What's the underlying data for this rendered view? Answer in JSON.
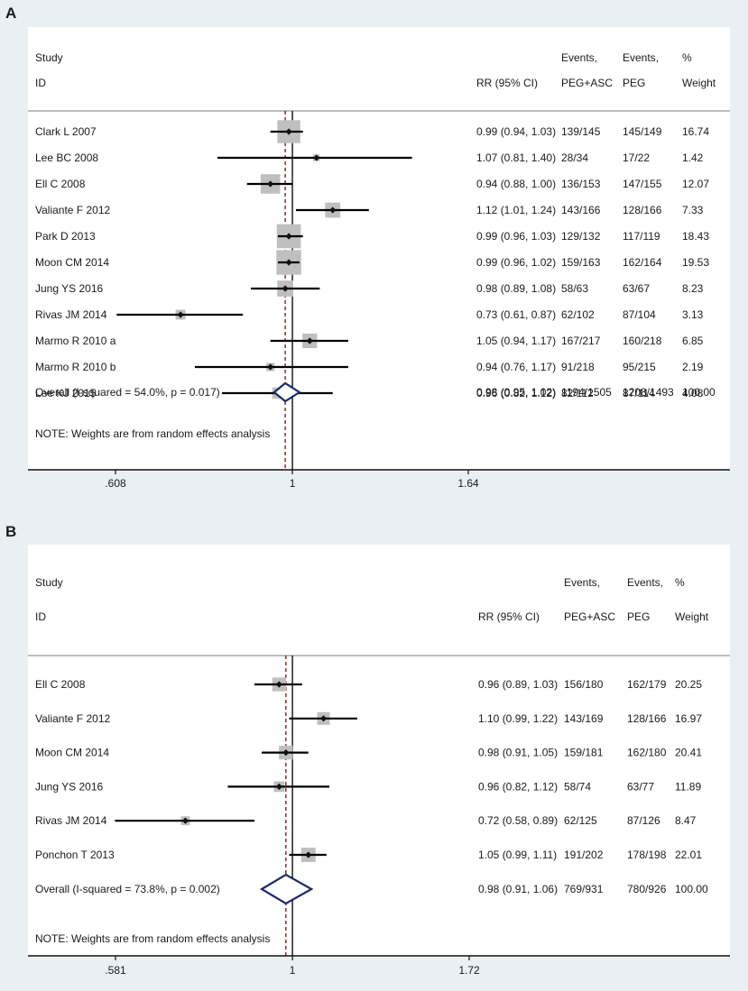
{
  "panels": [
    {
      "letter": "A",
      "headers": {
        "study": "Study",
        "id": "ID",
        "rr": "RR (95% CI)",
        "events_a_1": "Events,",
        "events_a_2": "PEG+ASC",
        "events_b_1": "Events,",
        "events_b_2": "PEG",
        "weight_1": "%",
        "weight_2": "Weight"
      },
      "rows": [
        {
          "study": "Clark L 2007",
          "rr": 0.99,
          "lo": 0.94,
          "hi": 1.03,
          "ci_text": "0.99 (0.94, 1.03)",
          "ev_a": "139/145",
          "ev_b": "145/149",
          "weight": "16.74"
        },
        {
          "study": "Lee BC 2008",
          "rr": 1.07,
          "lo": 0.81,
          "hi": 1.4,
          "ci_text": "1.07 (0.81, 1.40)",
          "ev_a": "28/34",
          "ev_b": "17/22",
          "weight": "1.42"
        },
        {
          "study": "Ell C 2008",
          "rr": 0.94,
          "lo": 0.88,
          "hi": 1.0,
          "ci_text": "0.94 (0.88, 1.00)",
          "ev_a": "136/153",
          "ev_b": "147/155",
          "weight": "12.07"
        },
        {
          "study": "Valiante F 2012",
          "rr": 1.12,
          "lo": 1.01,
          "hi": 1.24,
          "ci_text": "1.12 (1.01, 1.24)",
          "ev_a": "143/166",
          "ev_b": "128/166",
          "weight": "7.33"
        },
        {
          "study": "Park D 2013",
          "rr": 0.99,
          "lo": 0.96,
          "hi": 1.03,
          "ci_text": "0.99 (0.96, 1.03)",
          "ev_a": "129/132",
          "ev_b": "117/119",
          "weight": "18.43"
        },
        {
          "study": "Moon CM 2014",
          "rr": 0.99,
          "lo": 0.96,
          "hi": 1.02,
          "ci_text": "0.99 (0.96, 1.02)",
          "ev_a": "159/163",
          "ev_b": "162/164",
          "weight": "19.53"
        },
        {
          "study": "Jung YS 2016",
          "rr": 0.98,
          "lo": 0.89,
          "hi": 1.08,
          "ci_text": "0.98 (0.89, 1.08)",
          "ev_a": "58/63",
          "ev_b": "63/67",
          "weight": "8.23"
        },
        {
          "study": "Rivas JM 2014",
          "rr": 0.73,
          "lo": 0.61,
          "hi": 0.87,
          "ci_text": "0.73 (0.61, 0.87)",
          "ev_a": "62/102",
          "ev_b": "87/104",
          "weight": "3.13"
        },
        {
          "study": "Marmo R 2010 a",
          "rr": 1.05,
          "lo": 0.94,
          "hi": 1.17,
          "ci_text": "1.05 (0.94, 1.17)",
          "ev_a": "167/217",
          "ev_b": "160/218",
          "weight": "6.85"
        },
        {
          "study": "Marmo R 2010 b",
          "rr": 0.94,
          "lo": 0.76,
          "hi": 1.17,
          "ci_text": "0.94 (0.76, 1.17)",
          "ev_a": "91/218",
          "ev_b": "95/215",
          "weight": "2.19"
        },
        {
          "study": "Lee KJ 2015",
          "rr": 0.96,
          "lo": 0.82,
          "hi": 1.12,
          "ci_text": "0.96 (0.82, 1.12)",
          "ev_a": "82/112",
          "ev_b": "87/114",
          "weight": "4.08"
        }
      ],
      "overall": {
        "label": "Overall  (I-squared = 54.0%, p = 0.017)",
        "rr": 0.98,
        "lo": 0.95,
        "hi": 1.02,
        "ci_text": "0.98 (0.95, 1.02)",
        "ev_a": "1194/1505",
        "ev_b": "1208/1493",
        "weight": "100.00"
      },
      "note": "NOTE: Weights are from random effects analysis",
      "ticks": [
        {
          "value": 0.608,
          "label": ".608"
        },
        {
          "value": 1,
          "label": "1"
        },
        {
          "value": 1.64,
          "label": "1.64"
        }
      ]
    },
    {
      "letter": "B",
      "headers": {
        "study": "Study",
        "id": "ID",
        "rr": "RR (95% CI)",
        "events_a_1": "Events,",
        "events_a_2": "PEG+ASC",
        "events_b_1": "Events,",
        "events_b_2": "PEG",
        "weight_1": "%",
        "weight_2": "Weight"
      },
      "rows": [
        {
          "study": "Ell C 2008",
          "rr": 0.96,
          "lo": 0.89,
          "hi": 1.03,
          "ci_text": "0.96 (0.89, 1.03)",
          "ev_a": "156/180",
          "ev_b": "162/179",
          "weight": "20.25"
        },
        {
          "study": "Valiante F 2012",
          "rr": 1.1,
          "lo": 0.99,
          "hi": 1.22,
          "ci_text": "1.10 (0.99, 1.22)",
          "ev_a": "143/169",
          "ev_b": "128/166",
          "weight": "16.97"
        },
        {
          "study": "Moon CM 2014",
          "rr": 0.98,
          "lo": 0.91,
          "hi": 1.05,
          "ci_text": "0.98 (0.91, 1.05)",
          "ev_a": "159/181",
          "ev_b": "162/180",
          "weight": "20.41"
        },
        {
          "study": "Jung YS 2016",
          "rr": 0.96,
          "lo": 0.82,
          "hi": 1.12,
          "ci_text": "0.96 (0.82, 1.12)",
          "ev_a": "58/74",
          "ev_b": "63/77",
          "weight": "11.89"
        },
        {
          "study": "Rivas JM 2014",
          "rr": 0.72,
          "lo": 0.58,
          "hi": 0.89,
          "ci_text": "0.72 (0.58, 0.89)",
          "ev_a": "62/125",
          "ev_b": "87/126",
          "weight": "8.47"
        },
        {
          "study": "Ponchon T 2013",
          "rr": 1.05,
          "lo": 0.99,
          "hi": 1.11,
          "ci_text": "1.05 (0.99, 1.11)",
          "ev_a": "191/202",
          "ev_b": "178/198",
          "weight": "22.01"
        }
      ],
      "overall": {
        "label": "Overall  (I-squared = 73.8%, p = 0.002)",
        "rr": 0.98,
        "lo": 0.91,
        "hi": 1.06,
        "ci_text": "0.98 (0.91, 1.06)",
        "ev_a": "769/931",
        "ev_b": "780/926",
        "weight": "100.00"
      },
      "note": "NOTE: Weights are from random effects analysis",
      "ticks": [
        {
          "value": 0.581,
          "label": ".581"
        },
        {
          "value": 1,
          "label": "1"
        },
        {
          "value": 1.72,
          "label": "1.72"
        }
      ]
    }
  ],
  "chart_data": [
    {
      "type": "forest",
      "title": "A",
      "xscale": "log",
      "reference_line": 1,
      "pooled_line": 0.98,
      "x_ticks": [
        0.608,
        1,
        1.64
      ],
      "studies": [
        "Clark L 2007",
        "Lee BC 2008",
        "Ell C 2008",
        "Valiante F 2012",
        "Park D 2013",
        "Moon CM 2014",
        "Jung YS 2016",
        "Rivas JM 2014",
        "Marmo R 2010 a",
        "Marmo R 2010 b",
        "Lee KJ 2015"
      ],
      "rr": [
        0.99,
        1.07,
        0.94,
        1.12,
        0.99,
        0.99,
        0.98,
        0.73,
        1.05,
        0.94,
        0.96
      ],
      "ci_low": [
        0.94,
        0.81,
        0.88,
        1.01,
        0.96,
        0.96,
        0.89,
        0.61,
        0.94,
        0.76,
        0.82
      ],
      "ci_high": [
        1.03,
        1.4,
        1.0,
        1.24,
        1.03,
        1.02,
        1.08,
        0.87,
        1.17,
        1.17,
        1.12
      ],
      "weights": [
        16.74,
        1.42,
        12.07,
        7.33,
        18.43,
        19.53,
        8.23,
        3.13,
        6.85,
        2.19,
        4.08
      ],
      "overall": {
        "rr": 0.98,
        "ci_low": 0.95,
        "ci_high": 1.02
      }
    },
    {
      "type": "forest",
      "title": "B",
      "xscale": "log",
      "reference_line": 1,
      "pooled_line": 0.98,
      "x_ticks": [
        0.581,
        1,
        1.72
      ],
      "studies": [
        "Ell C 2008",
        "Valiante F 2012",
        "Moon CM 2014",
        "Jung YS 2016",
        "Rivas JM 2014",
        "Ponchon T 2013"
      ],
      "rr": [
        0.96,
        1.1,
        0.98,
        0.96,
        0.72,
        1.05
      ],
      "ci_low": [
        0.89,
        0.99,
        0.91,
        0.82,
        0.58,
        0.99
      ],
      "ci_high": [
        1.03,
        1.22,
        1.05,
        1.12,
        0.89,
        1.11
      ],
      "weights": [
        20.25,
        16.97,
        20.41,
        11.89,
        8.47,
        22.01
      ],
      "overall": {
        "rr": 0.98,
        "ci_low": 0.91,
        "ci_high": 1.06
      }
    }
  ]
}
